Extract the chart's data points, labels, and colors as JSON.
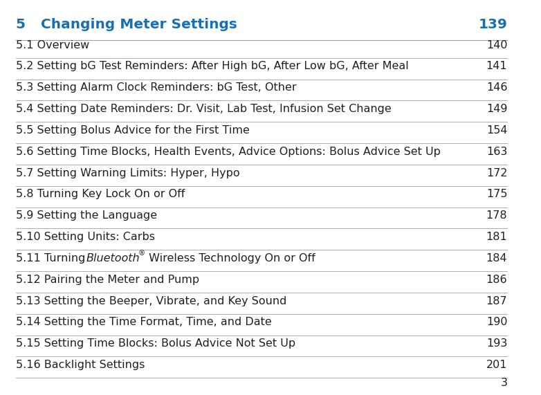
{
  "chapter_number": "5",
  "chapter_title": "Changing Meter Settings",
  "chapter_page": "139",
  "chapter_title_color": "#1a6faf",
  "chapter_number_color": "#1a6faf",
  "rows": [
    {
      "label": "5.1 Overview",
      "page": "140",
      "italic_word": null
    },
    {
      "label": "5.2 Setting bG Test Reminders: After High bG, After Low bG, After Meal",
      "page": "141",
      "italic_word": null
    },
    {
      "label": "5.3 Setting Alarm Clock Reminders: bG Test, Other",
      "page": "146",
      "italic_word": null
    },
    {
      "label": "5.4 Setting Date Reminders: Dr. Visit, Lab Test, Infusion Set Change",
      "page": "149",
      "italic_word": null
    },
    {
      "label": "5.5 Setting Bolus Advice for the First Time",
      "page": "154",
      "italic_word": null
    },
    {
      "label": "5.6 Setting Time Blocks, Health Events, Advice Options: Bolus Advice Set Up",
      "page": "163",
      "italic_word": null
    },
    {
      "label": "5.7 Setting Warning Limits: Hyper, Hypo",
      "page": "172",
      "italic_word": null
    },
    {
      "label": "5.8 Turning Key Lock On or Off",
      "page": "175",
      "italic_word": null
    },
    {
      "label": "5.9 Setting the Language",
      "page": "178",
      "italic_word": null
    },
    {
      "label": "5.10 Setting Units: Carbs",
      "page": "181",
      "italic_word": null
    },
    {
      "label_pre": "5.11 Turning ",
      "label_italic": "Bluetooth",
      "label_sup": "®",
      "label_post": " Wireless Technology On or Off",
      "page": "184",
      "italic_word": "Bluetooth"
    },
    {
      "label": "5.12 Pairing the Meter and Pump",
      "page": "186",
      "italic_word": null
    },
    {
      "label": "5.13 Setting the Beeper, Vibrate, and Key Sound",
      "page": "187",
      "italic_word": null
    },
    {
      "label": "5.14 Setting the Time Format, Time, and Date",
      "page": "190",
      "italic_word": null
    },
    {
      "label": "5.15 Setting Time Blocks: Bolus Advice Not Set Up",
      "page": "193",
      "italic_word": null
    },
    {
      "label": "5.16 Backlight Settings",
      "page": "201",
      "italic_word": null
    }
  ],
  "page_number": "3",
  "background_color": "#ffffff",
  "text_color": "#231f20",
  "line_color": "#a0a0a0",
  "font_size": 11.5,
  "header_font_size": 14.5
}
